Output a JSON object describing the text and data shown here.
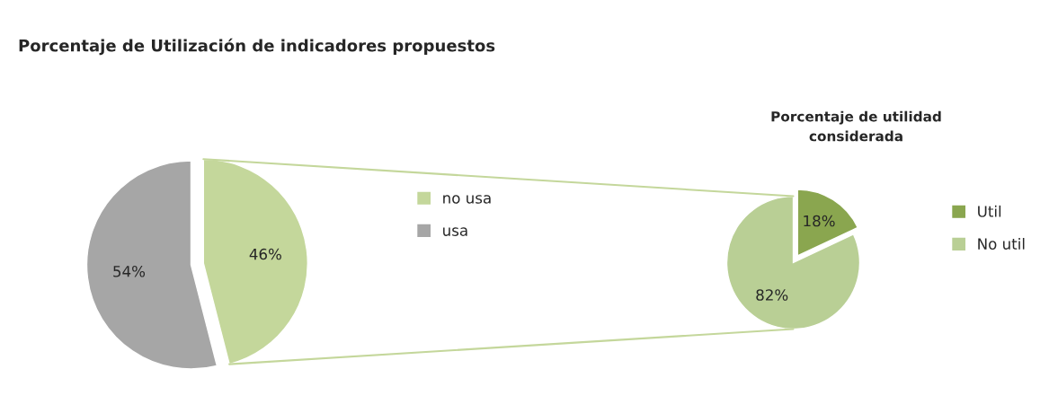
{
  "chart_data": [
    {
      "type": "pie",
      "title": "Porcentaje de Utilización de indicadores propuestos",
      "categories": [
        "no usa",
        "usa"
      ],
      "values": [
        46,
        54
      ],
      "colors": [
        "#c4d79b",
        "#a6a6a6"
      ],
      "value_labels": [
        "46%",
        "54%"
      ],
      "legend": "right"
    },
    {
      "type": "pie",
      "title": "Porcentaje de utilidad\nconsiderada",
      "categories": [
        "Util",
        "No util"
      ],
      "values": [
        18,
        82
      ],
      "colors": [
        "#8aa64f",
        "#b9cf95"
      ],
      "value_labels": [
        "18%",
        "82%"
      ],
      "legend": "right"
    }
  ]
}
